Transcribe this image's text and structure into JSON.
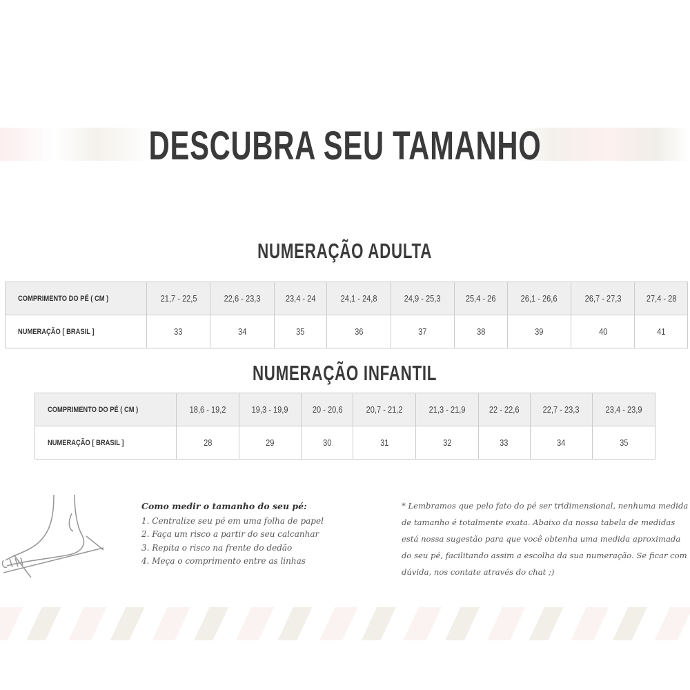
{
  "title": "DESCUBRA SEU TAMANHO",
  "adult": {
    "title": "NUMERAÇÃO ADULTA",
    "row_labels": [
      "COMPRIMENTO DO PÉ ( CM )",
      "NUMERAÇÃO [ BRASIL ]"
    ],
    "lengths": [
      "21,7 - 22,5",
      "22,6 - 23,3",
      "23,4 - 24",
      "24,1 - 24,8",
      "24,9 - 25,3",
      "25,4 - 26",
      "26,1 - 26,6",
      "26,7 - 27,3",
      "27,4 - 28"
    ],
    "sizes": [
      "33",
      "34",
      "35",
      "36",
      "37",
      "38",
      "39",
      "40",
      "41"
    ]
  },
  "infant": {
    "title": "NUMERAÇÃO INFANTIL",
    "row_labels": [
      "COMPRIMENTO DO PÉ ( CM )",
      "NUMERAÇÃO [ BRASIL ]"
    ],
    "lengths": [
      "18,6 - 19,2",
      "19,3 - 19,9",
      "20 - 20,6",
      "20,7 - 21,2",
      "21,3 - 21,9",
      "22 - 22,6",
      "22,7 - 23,3",
      "23,4 - 23,9"
    ],
    "sizes": [
      "28",
      "29",
      "30",
      "31",
      "32",
      "33",
      "34",
      "35"
    ]
  },
  "how_to": {
    "heading": "Como medir o tamanho do seu pé:",
    "steps": [
      "1. Centralize seu pé em uma folha de papel",
      "2. Faça um risco a partir do seu calcanhar",
      "3. Repita o risco na frente do dedão",
      "4. Meça o comprimento entre as linhas"
    ]
  },
  "note": "* Lembramos que pelo fato do pé ser tridimensional, nenhuma medida de tamanho é totalmente exata. Abaixo da nossa tabela de medidas está nossa sugestão para que você obtenha uma medida aproximada do seu pé, facilitando assim a escolha da sua numeração. Se ficar com dúvida, nos contate através do chat ;)",
  "icons": {
    "foot": "foot-illustration-icon"
  }
}
